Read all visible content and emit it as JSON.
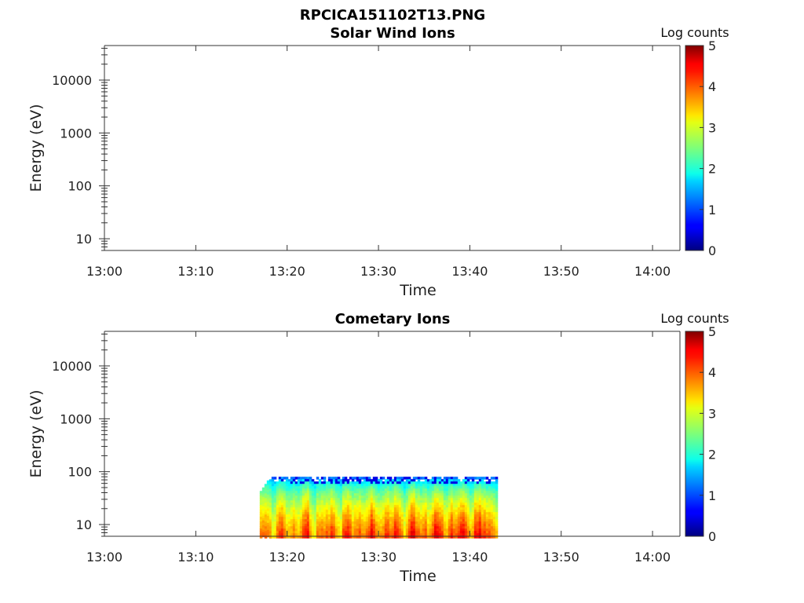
{
  "figure_title": "RPCICA151102T13.PNG",
  "chart_data": [
    {
      "type": "heatmap",
      "title": "Solar Wind Ions",
      "xlabel": "Time",
      "ylabel": "Energy (eV)",
      "x_range": [
        "13:00",
        "14:03"
      ],
      "x_ticks": [
        "13:00",
        "13:10",
        "13:20",
        "13:30",
        "13:40",
        "13:50",
        "14:00"
      ],
      "y_scale": "log",
      "y_range": [
        6,
        45000
      ],
      "y_ticks": [
        "10",
        "100",
        "1000",
        "10000"
      ],
      "colorbar": {
        "title": "Log counts",
        "range": [
          0,
          5
        ],
        "ticks": [
          "0",
          "1",
          "2",
          "3",
          "4",
          "5"
        ],
        "colormap": "jet"
      },
      "data_segments": []
    },
    {
      "type": "heatmap",
      "title": "Cometary Ions",
      "xlabel": "Time",
      "ylabel": "Energy (eV)",
      "x_range": [
        "13:00",
        "14:03"
      ],
      "x_ticks": [
        "13:00",
        "13:10",
        "13:20",
        "13:30",
        "13:40",
        "13:50",
        "14:00"
      ],
      "y_scale": "log",
      "y_range": [
        6,
        45000
      ],
      "y_ticks": [
        "10",
        "100",
        "1000",
        "10000"
      ],
      "colorbar": {
        "title": "Log counts",
        "range": [
          0,
          5
        ],
        "ticks": [
          "0",
          "1",
          "2",
          "3",
          "4",
          "5"
        ],
        "colormap": "jet"
      },
      "data_segments": [
        {
          "time_start": "13:17",
          "time_end": "13:43",
          "energy_min_eV": 6,
          "energy_max_eV": 80,
          "log_counts_at_low_energy": 3.8,
          "log_counts_at_high_energy": 1.2
        }
      ]
    }
  ]
}
